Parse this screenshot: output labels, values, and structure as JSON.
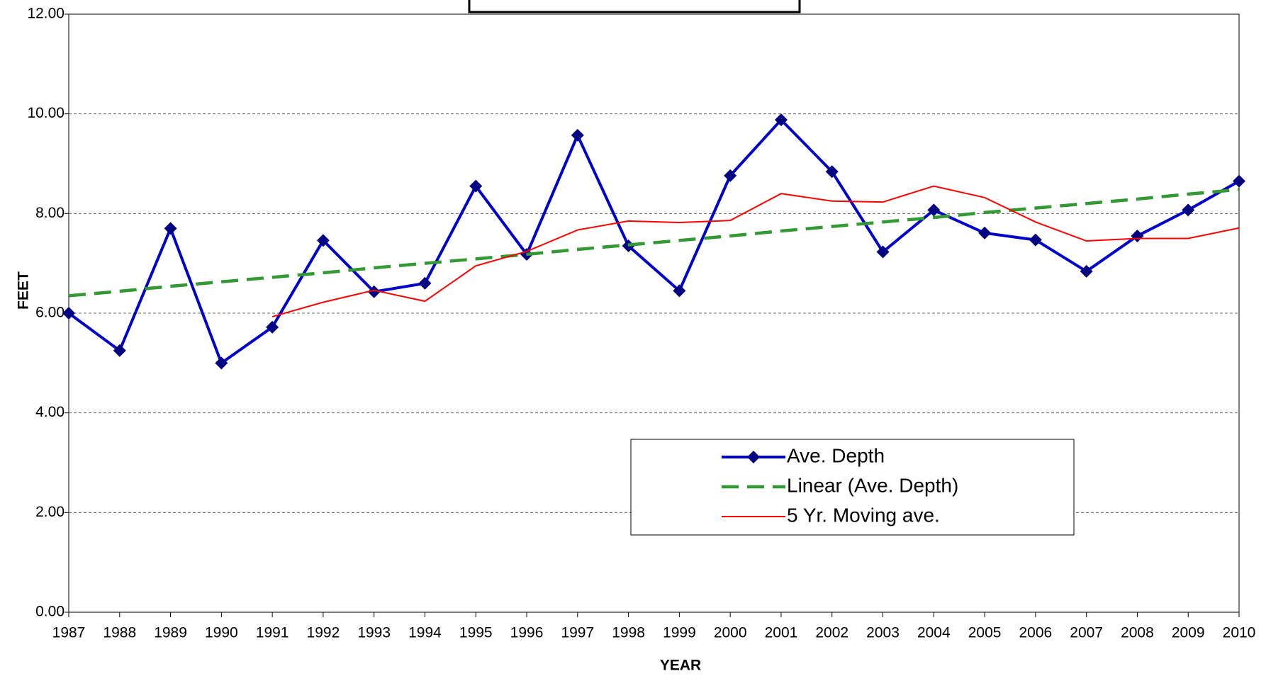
{
  "chart_data": {
    "type": "line",
    "x_label": "YEAR",
    "y_label": "FEET",
    "x": [
      1987,
      1988,
      1989,
      1990,
      1991,
      1992,
      1993,
      1994,
      1995,
      1996,
      1997,
      1998,
      1999,
      2000,
      2001,
      2002,
      2003,
      2004,
      2005,
      2006,
      2007,
      2008,
      2009,
      2010
    ],
    "xlim": [
      1987,
      2010
    ],
    "xticks": [
      1987,
      1988,
      1989,
      1990,
      1991,
      1992,
      1993,
      1994,
      1995,
      1996,
      1997,
      1998,
      1999,
      2000,
      2001,
      2002,
      2003,
      2004,
      2005,
      2006,
      2007,
      2008,
      2009,
      2010
    ],
    "ylim": [
      0,
      12
    ],
    "yticks": [
      {
        "value": 0,
        "label": "0.00"
      },
      {
        "value": 2,
        "label": "2.00"
      },
      {
        "value": 4,
        "label": "4.00"
      },
      {
        "value": 6,
        "label": "6.00"
      },
      {
        "value": 8,
        "label": "8.00"
      },
      {
        "value": 10,
        "label": "10.00"
      },
      {
        "value": 12,
        "label": "12.00"
      }
    ],
    "grid": true,
    "series": [
      {
        "name": "Ave. Depth",
        "color": "#0000cc",
        "marker": "diamond",
        "marker_color": "#000080",
        "dash": false,
        "values": [
          6.0,
          5.25,
          7.7,
          5.0,
          5.72,
          7.46,
          6.43,
          6.6,
          8.55,
          7.18,
          9.57,
          7.35,
          6.45,
          8.76,
          9.88,
          8.84,
          7.23,
          8.07,
          7.61,
          7.47,
          6.84,
          7.55,
          8.07,
          8.65
        ]
      },
      {
        "name": "Linear (Ave. Depth)",
        "color": "#339933",
        "dash": true,
        "values": [
          6.35,
          6.44,
          6.54,
          6.63,
          6.72,
          6.81,
          6.91,
          7.0,
          7.09,
          7.18,
          7.28,
          7.37,
          7.46,
          7.55,
          7.65,
          7.74,
          7.83,
          7.92,
          8.02,
          8.11,
          8.2,
          8.29,
          8.39,
          8.48
        ]
      },
      {
        "name": "5 Yr. Moving ave.",
        "color": "#ff0000",
        "dash": false,
        "values": [
          null,
          null,
          null,
          null,
          5.93,
          6.22,
          6.46,
          6.24,
          6.95,
          7.24,
          7.67,
          7.85,
          7.82,
          7.86,
          8.4,
          8.25,
          8.23,
          8.55,
          8.32,
          7.83,
          7.45,
          7.5,
          7.5,
          7.71
        ]
      }
    ]
  }
}
